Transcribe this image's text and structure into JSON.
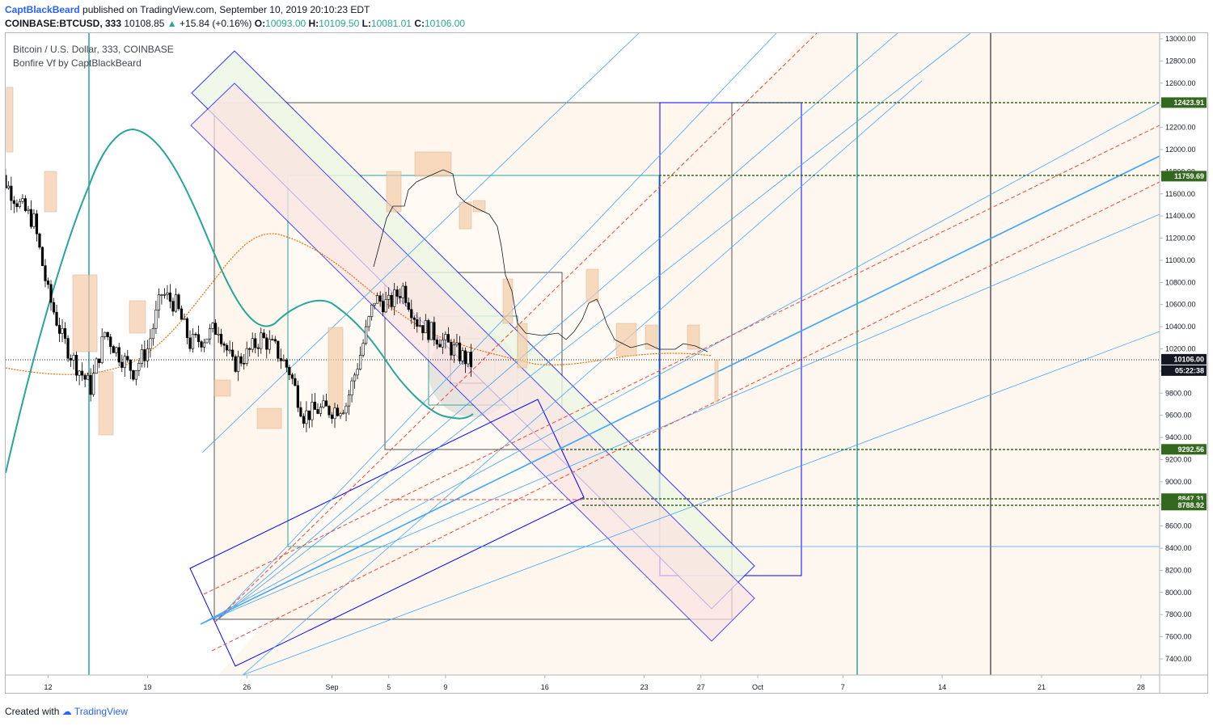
{
  "header": {
    "author": "CaptBlackBeard",
    "published": "published on TradingView.com, September 10, 2019 20:10:23 EDT",
    "symbol_line": "COINBASE:BTCUSD, 333",
    "last": "10108.85",
    "change": "+15.84 (+0.16%)",
    "o_label": "O:",
    "o_value": "10093.00",
    "h_label": "H:",
    "h_value": "10109.50",
    "l_label": "L:",
    "l_value": "10081.01",
    "c_label": "C:",
    "c_value": "10106.00"
  },
  "legend": {
    "title": "Bitcoin / U.S. Dollar, 333, COINBASE",
    "indicator": "Bonfire Vf by CaptBlackBeard"
  },
  "footer": {
    "created": "Created with",
    "brand": "TradingView"
  },
  "colors": {
    "price_tag": "#131722",
    "level_tag": "#33691e",
    "teal": "#26a69a",
    "blue": "#0000ff",
    "light_blue": "#42a5f5",
    "red_dash": "#f44336",
    "orange_ma": "#ef6c00"
  },
  "chart_data": {
    "type": "candlestick",
    "title": "Bitcoin / U.S. Dollar, 333, COINBASE",
    "ylim": [
      7200,
      13100
    ],
    "y_ticks": [
      "13000.00",
      "12800.00",
      "12600.00",
      "12400.00",
      "12200.00",
      "12000.00",
      "11800.00",
      "11600.00",
      "11400.00",
      "11200.00",
      "11000.00",
      "10800.00",
      "10600.00",
      "10400.00",
      "10200.00",
      "10000.00",
      "9800.00",
      "9600.00",
      "9400.00",
      "9200.00",
      "9000.00",
      "8800.00",
      "8600.00",
      "8400.00",
      "8200.00",
      "8000.00",
      "7800.00",
      "7600.00",
      "7400.00"
    ],
    "x_ticks": [
      {
        "label": "12",
        "day": 12
      },
      {
        "label": "19",
        "day": 19
      },
      {
        "label": "26",
        "day": 26
      },
      {
        "label": "Sep",
        "day": 32
      },
      {
        "label": "5",
        "day": 36
      },
      {
        "label": "9",
        "day": 40
      },
      {
        "label": "16",
        "day": 47
      },
      {
        "label": "23",
        "day": 54
      },
      {
        "label": "27",
        "day": 58
      },
      {
        "label": "Oct",
        "day": 62
      },
      {
        "label": "7",
        "day": 68
      },
      {
        "label": "14",
        "day": 75
      },
      {
        "label": "21",
        "day": 82
      },
      {
        "label": "28",
        "day": 89
      }
    ],
    "current_price": "10106.00",
    "countdown": "05:22:38",
    "levels": [
      "12423.91",
      "11759.69",
      "9292.56",
      "8847.31",
      "8788.92"
    ],
    "series": [
      {
        "name": "BTCUSD",
        "close_path": [
          [
            8,
            11900
          ],
          [
            9,
            11700
          ],
          [
            10,
            11500
          ],
          [
            11,
            11350
          ],
          [
            12,
            10700
          ],
          [
            13,
            10300
          ],
          [
            14,
            10050
          ],
          [
            15,
            9850
          ],
          [
            16,
            10350
          ],
          [
            17,
            10150
          ],
          [
            18,
            10000
          ],
          [
            19,
            10200
          ],
          [
            20,
            10700
          ],
          [
            21,
            10600
          ],
          [
            22,
            10250
          ],
          [
            23,
            10300
          ],
          [
            24,
            10400
          ],
          [
            25,
            10050
          ],
          [
            26,
            10150
          ],
          [
            27,
            10300
          ],
          [
            28,
            10200
          ],
          [
            29,
            10000
          ],
          [
            30,
            9600
          ],
          [
            31,
            9650
          ],
          [
            32,
            9650
          ],
          [
            33,
            9700
          ],
          [
            34,
            10150
          ],
          [
            35,
            10650
          ],
          [
            36,
            10600
          ],
          [
            37,
            10750
          ],
          [
            38,
            10450
          ],
          [
            39,
            10350
          ],
          [
            40,
            10250
          ],
          [
            41,
            10150
          ],
          [
            42,
            10050
          ]
        ]
      }
    ]
  }
}
